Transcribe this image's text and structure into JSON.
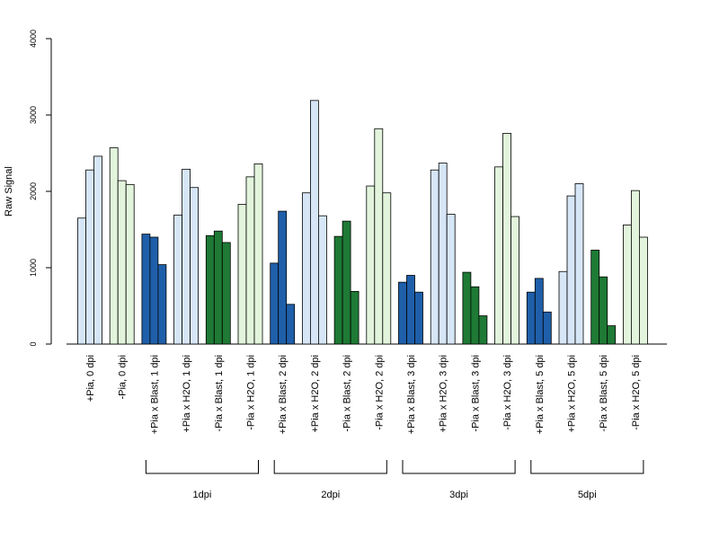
{
  "chart_data": {
    "type": "bar",
    "ylabel": "Raw Signal",
    "ylim": [
      0,
      4000
    ],
    "yticks": [
      0,
      1000,
      2000,
      3000,
      4000
    ],
    "grid": false,
    "legend": "none",
    "colors": {
      "light_blue": "#d6e6f7",
      "dark_blue": "#1f5faa",
      "light_green": "#e2f5dc",
      "dark_green": "#1e7a35"
    },
    "categories": [
      {
        "label": "+Pia, 0 dpi",
        "color": "light_blue",
        "values": [
          1650,
          2280,
          2460
        ]
      },
      {
        "label": "-Pia, 0 dpi",
        "color": "light_green",
        "values": [
          2570,
          2140,
          2090
        ]
      },
      {
        "label": "+Pia x Blast, 1 dpi",
        "color": "dark_blue",
        "values": [
          1440,
          1400,
          1040
        ]
      },
      {
        "label": "+Pia x H2O, 1 dpi",
        "color": "light_blue",
        "values": [
          1690,
          2290,
          2050
        ]
      },
      {
        "label": "-Pia x Blast, 1 dpi",
        "color": "dark_green",
        "values": [
          1420,
          1480,
          1330
        ]
      },
      {
        "label": "-Pia x H2O, 1 dpi",
        "color": "light_green",
        "values": [
          1830,
          2190,
          2360
        ]
      },
      {
        "label": "+Pia x Blast, 2 dpi",
        "color": "dark_blue",
        "values": [
          1060,
          1740,
          520
        ]
      },
      {
        "label": "+Pia x H2O, 2 dpi",
        "color": "light_blue",
        "values": [
          1980,
          3190,
          1680
        ]
      },
      {
        "label": "-Pia x Blast, 2 dpi",
        "color": "dark_green",
        "values": [
          1410,
          1610,
          690
        ]
      },
      {
        "label": "-Pia x H2O, 2 dpi",
        "color": "light_green",
        "values": [
          2070,
          2820,
          1980
        ]
      },
      {
        "label": "+Pia x Blast, 3 dpi",
        "color": "dark_blue",
        "values": [
          810,
          900,
          680
        ]
      },
      {
        "label": "+Pia x H2O, 3 dpi",
        "color": "light_blue",
        "values": [
          2280,
          2370,
          1700
        ]
      },
      {
        "label": "-Pia x Blast, 3 dpi",
        "color": "dark_green",
        "values": [
          940,
          750,
          370
        ]
      },
      {
        "label": "-Pia x H2O, 3 dpi",
        "color": "light_green",
        "values": [
          2320,
          2760,
          1670
        ]
      },
      {
        "label": "+Pia x Blast, 5 dpi",
        "color": "dark_blue",
        "values": [
          680,
          860,
          420
        ]
      },
      {
        "label": "+Pia x H2O, 5 dpi",
        "color": "light_blue",
        "values": [
          950,
          1940,
          2100
        ]
      },
      {
        "label": "-Pia x Blast, 5 dpi",
        "color": "dark_green",
        "values": [
          1230,
          880,
          240
        ]
      },
      {
        "label": "-Pia x H2O, 5 dpi",
        "color": "light_green",
        "values": [
          1560,
          2010,
          1400
        ]
      }
    ],
    "groups": [
      {
        "label": "1dpi",
        "categories": [
          2,
          5
        ]
      },
      {
        "label": "2dpi",
        "categories": [
          6,
          9
        ]
      },
      {
        "label": "3dpi",
        "categories": [
          10,
          13
        ]
      },
      {
        "label": "5dpi",
        "categories": [
          14,
          17
        ]
      }
    ]
  }
}
